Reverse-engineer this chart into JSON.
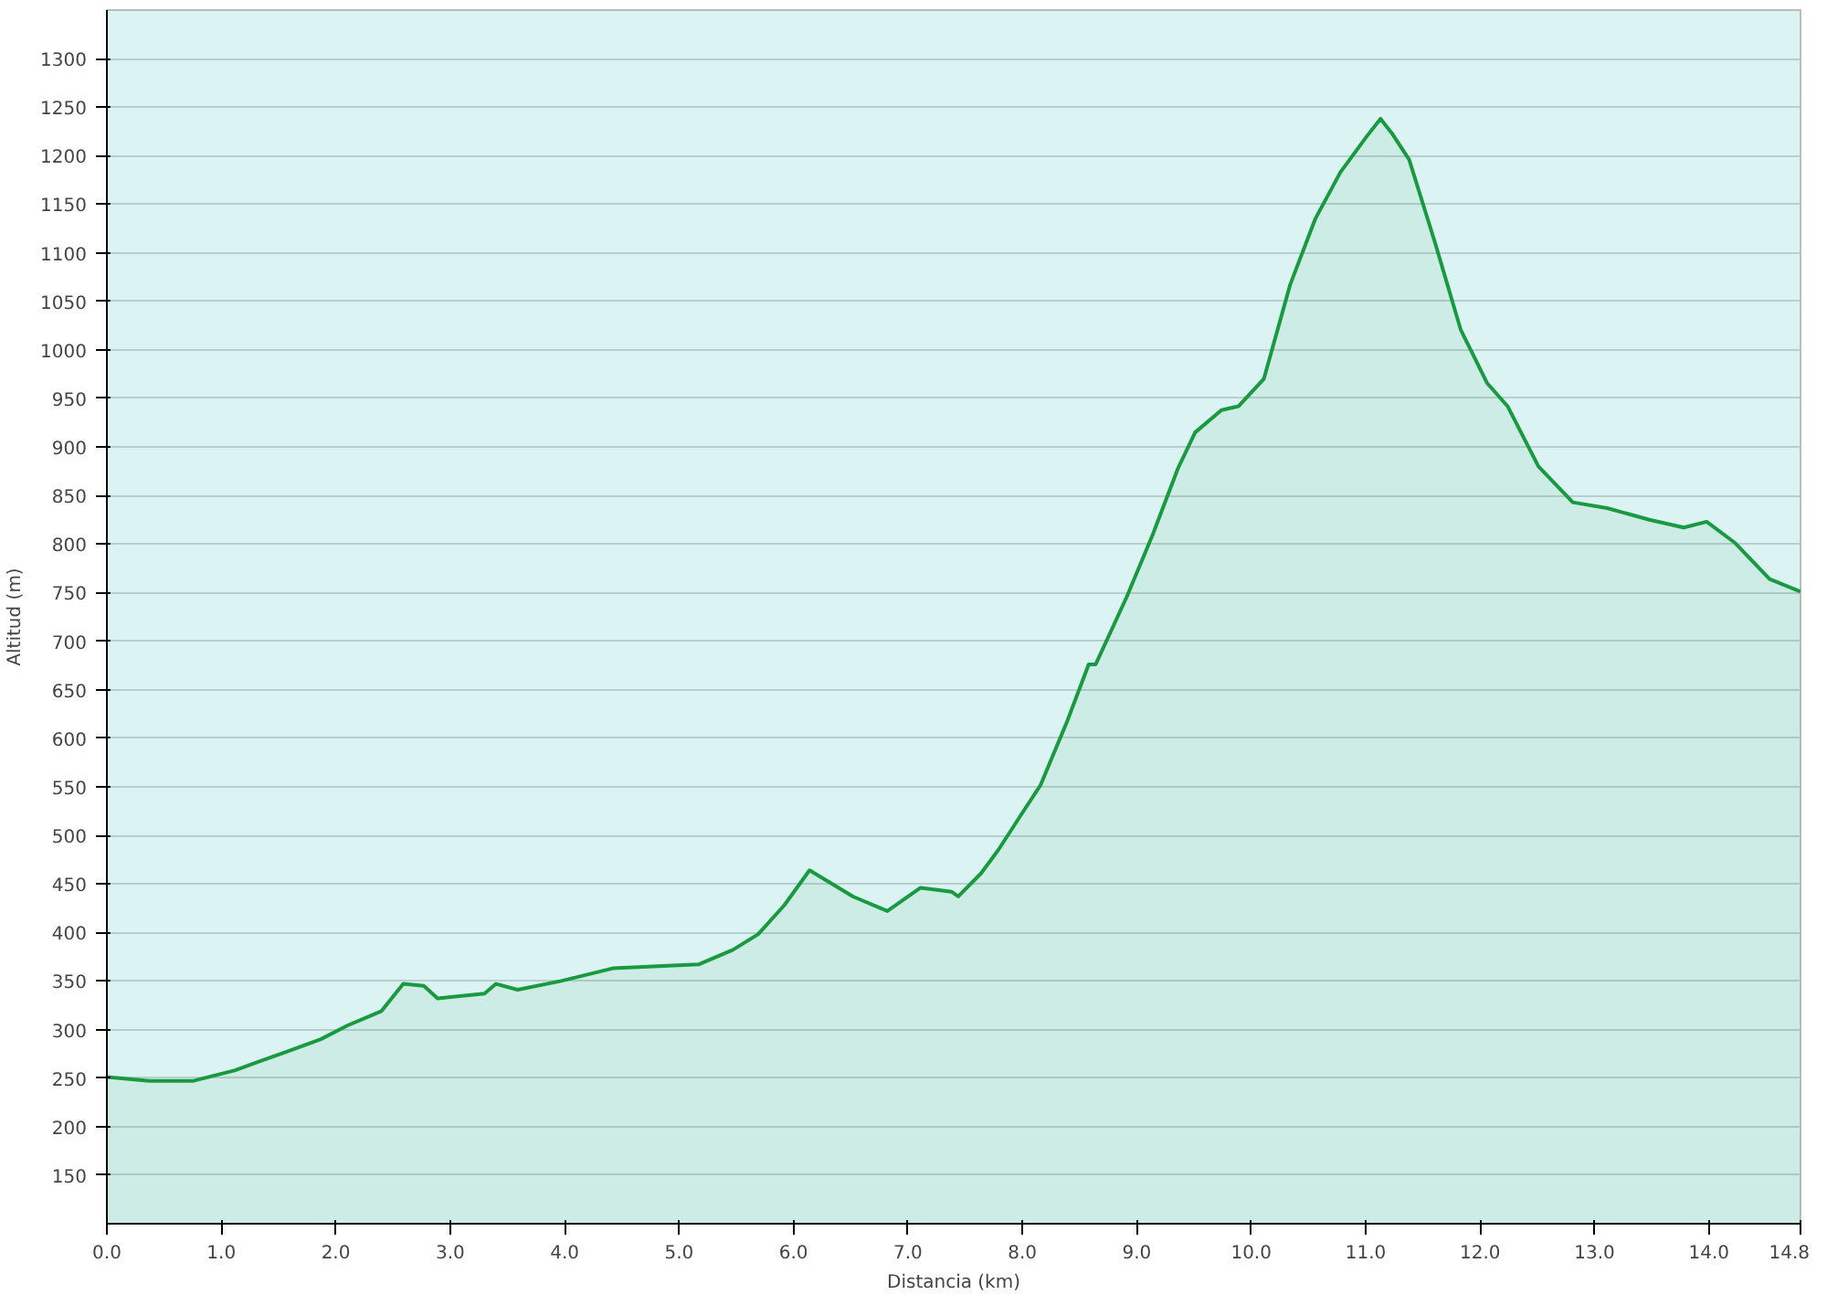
{
  "chart_data": {
    "type": "area",
    "xlabel": "Distancia (km)",
    "ylabel": "Altitud (m)",
    "grid": "y",
    "xlim": [
      0,
      14.8
    ],
    "ylim": [
      100,
      1350
    ],
    "xticks": [
      {
        "value": 0,
        "label": "0.0"
      },
      {
        "value": 1,
        "label": "1.0"
      },
      {
        "value": 2,
        "label": "2.0"
      },
      {
        "value": 3,
        "label": "3.0"
      },
      {
        "value": 4,
        "label": "4.0"
      },
      {
        "value": 5,
        "label": "5.0"
      },
      {
        "value": 6,
        "label": "6.0"
      },
      {
        "value": 7,
        "label": "7.0"
      },
      {
        "value": 8,
        "label": "8.0"
      },
      {
        "value": 9,
        "label": "9.0"
      },
      {
        "value": 10,
        "label": "10.0"
      },
      {
        "value": 11,
        "label": "11.0"
      },
      {
        "value": 12,
        "label": "12.0"
      },
      {
        "value": 13,
        "label": "13.0"
      },
      {
        "value": 14,
        "label": "14.0"
      },
      {
        "value": 14.8,
        "label": "14.8"
      }
    ],
    "yticks": [
      150,
      200,
      250,
      300,
      350,
      400,
      450,
      500,
      550,
      600,
      650,
      700,
      750,
      800,
      850,
      900,
      950,
      1000,
      1050,
      1100,
      1150,
      1200,
      1250,
      1300
    ],
    "x": [
      0,
      0.37,
      0.75,
      1.12,
      1.35,
      1.57,
      1.87,
      2.1,
      2.4,
      2.59,
      2.77,
      2.89,
      3.3,
      3.4,
      3.59,
      3.97,
      4.42,
      5.17,
      5.47,
      5.69,
      5.92,
      6.14,
      6.52,
      6.82,
      7.11,
      7.38,
      7.44,
      7.64,
      7.79,
      8.01,
      8.16,
      8.39,
      8.58,
      8.64,
      8.91,
      9.14,
      9.36,
      9.51,
      9.74,
      9.89,
      10.11,
      10.34,
      10.56,
      10.78,
      11.01,
      11.13,
      11.23,
      11.38,
      11.61,
      11.83,
      12.06,
      12.24,
      12.51,
      12.81,
      13.11,
      13.48,
      13.78,
      13.98,
      14.23,
      14.53,
      14.8
    ],
    "series": [
      {
        "color": "#1a9a40",
        "values": [
          251,
          247,
          247,
          258,
          268,
          277,
          290,
          304,
          319,
          347,
          345,
          332,
          337,
          347,
          341,
          350,
          363,
          367,
          382,
          398,
          428,
          464,
          437,
          422,
          446,
          442,
          437,
          461,
          485,
          525,
          552,
          617,
          676,
          676,
          745,
          810,
          878,
          915,
          938,
          942,
          970,
          1067,
          1135,
          1183,
          1220,
          1238,
          1223,
          1196,
          1109,
          1021,
          966,
          942,
          880,
          843,
          837,
          825,
          817,
          823,
          801,
          764,
          751
        ]
      }
    ]
  }
}
